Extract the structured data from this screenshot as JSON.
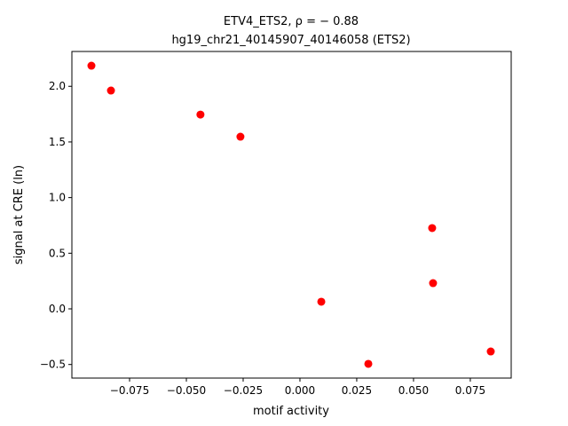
{
  "chart_data": {
    "type": "scatter",
    "title": "ETV4_ETS2, ρ = − 0.88",
    "subtitle": "hg19_chr21_40145907_40146058 (ETS2)",
    "x_label": "motif activity",
    "y_label": "signal at CRE (ln)",
    "color": "#ff0000",
    "x": [
      -0.0918,
      -0.0832,
      -0.0438,
      -0.0262,
      0.0582,
      0.0586,
      0.0094,
      0.0301,
      0.084
    ],
    "values": [
      2.185,
      1.962,
      1.746,
      1.547,
      0.726,
      0.231,
      0.064,
      -0.494,
      -0.383
    ],
    "xlim": [
      -0.1004,
      0.093
    ],
    "ylim": [
      -0.622,
      2.313
    ],
    "xticks": [
      {
        "value": -0.075,
        "label": "−0.075"
      },
      {
        "value": -0.05,
        "label": "−0.050"
      },
      {
        "value": -0.025,
        "label": "−0.025"
      },
      {
        "value": 0,
        "label": "0.000"
      },
      0.025,
      {
        "value": 0.05,
        "label": "0.050"
      },
      0.075
    ],
    "yticks": [
      {
        "value": -0.5,
        "label": "−0.5"
      },
      {
        "value": 0,
        "label": "0.0"
      },
      0.5,
      {
        "value": 1,
        "label": "1.0"
      },
      1.5,
      {
        "value": 2,
        "label": "2.0"
      }
    ],
    "grid": false
  }
}
